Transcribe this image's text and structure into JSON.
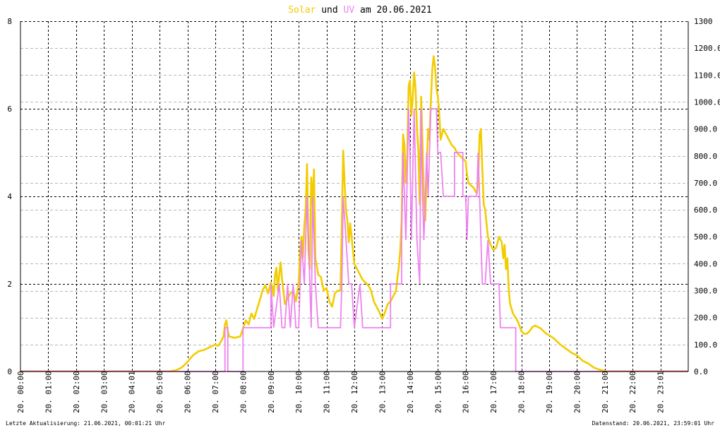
{
  "title": {
    "part1": "Solar",
    "part2": " und ",
    "part3": "UV",
    "part4": " am 20.06.2021"
  },
  "footer": {
    "left": "Letzte Aktualisierung: 21.06.2021, 00:01:21 Uhr",
    "right": "Datenstand: 20.06.2021, 23:59:01 Uhr"
  },
  "chart_data": {
    "type": "line",
    "title": "Solar und UV am 20.06.2021",
    "x_axis": {
      "unit": "hour",
      "range": [
        0,
        24
      ],
      "tick_labels": [
        "20. 00:00",
        "20. 01:00",
        "20. 02:00",
        "20. 03:00",
        "20. 04:01",
        "20. 05:00",
        "20. 06:00",
        "20. 07:00",
        "20. 08:00",
        "20. 09:00",
        "20. 10:00",
        "20. 11:00",
        "20. 12:00",
        "20. 13:00",
        "20. 14:00",
        "20. 15:00",
        "20. 16:00",
        "20. 17:00",
        "20. 18:00",
        "20. 19:00",
        "20. 20:00",
        "20. 21:00",
        "20. 22:00",
        "20. 23:01"
      ]
    },
    "y_left": {
      "range": [
        0,
        8
      ],
      "ticks": [
        "0",
        "2",
        "4",
        "6",
        "8"
      ],
      "series": "UV"
    },
    "y_right": {
      "range": [
        0,
        1300
      ],
      "ticks": [
        "0.0",
        "100.0",
        "200.0",
        "300.0",
        "400.0",
        "500.0",
        "600.0",
        "700.0",
        "800.0",
        "900.0",
        "1000.0",
        "1100.0",
        "1200.0",
        "1300"
      ],
      "series": "Solar"
    },
    "grid": true,
    "colors": {
      "solar": "#f2cc00",
      "uv": "#ee82ee",
      "overlap": "#f4a0a0",
      "grid": "#000000"
    },
    "series": [
      {
        "name": "Solar",
        "axis": "right",
        "points": [
          [
            0,
            0
          ],
          [
            5.3,
            0
          ],
          [
            5.6,
            5
          ],
          [
            5.8,
            15
          ],
          [
            6.0,
            35
          ],
          [
            6.2,
            60
          ],
          [
            6.4,
            75
          ],
          [
            6.6,
            80
          ],
          [
            6.8,
            90
          ],
          [
            7.0,
            100
          ],
          [
            7.1,
            95
          ],
          [
            7.2,
            110
          ],
          [
            7.3,
            130
          ],
          [
            7.35,
            175
          ],
          [
            7.4,
            190
          ],
          [
            7.45,
            150
          ],
          [
            7.5,
            130
          ],
          [
            7.7,
            125
          ],
          [
            7.9,
            130
          ],
          [
            8.0,
            160
          ],
          [
            8.1,
            190
          ],
          [
            8.2,
            175
          ],
          [
            8.3,
            215
          ],
          [
            8.4,
            195
          ],
          [
            8.5,
            230
          ],
          [
            8.6,
            265
          ],
          [
            8.7,
            300
          ],
          [
            8.8,
            320
          ],
          [
            8.9,
            290
          ],
          [
            9.0,
            330
          ],
          [
            9.05,
            315
          ],
          [
            9.1,
            280
          ],
          [
            9.15,
            360
          ],
          [
            9.2,
            385
          ],
          [
            9.25,
            300
          ],
          [
            9.3,
            360
          ],
          [
            9.35,
            405
          ],
          [
            9.4,
            345
          ],
          [
            9.5,
            250
          ],
          [
            9.6,
            270
          ],
          [
            9.7,
            290
          ],
          [
            9.8,
            300
          ],
          [
            9.9,
            260
          ],
          [
            10.0,
            330
          ],
          [
            10.05,
            450
          ],
          [
            10.1,
            500
          ],
          [
            10.15,
            420
          ],
          [
            10.2,
            540
          ],
          [
            10.25,
            600
          ],
          [
            10.3,
            770
          ],
          [
            10.35,
            450
          ],
          [
            10.4,
            380
          ],
          [
            10.45,
            720
          ],
          [
            10.5,
            620
          ],
          [
            10.55,
            750
          ],
          [
            10.6,
            420
          ],
          [
            10.7,
            360
          ],
          [
            10.8,
            350
          ],
          [
            10.9,
            300
          ],
          [
            11.0,
            310
          ],
          [
            11.1,
            260
          ],
          [
            11.2,
            240
          ],
          [
            11.3,
            290
          ],
          [
            11.4,
            300
          ],
          [
            11.5,
            300
          ],
          [
            11.55,
            560
          ],
          [
            11.6,
            820
          ],
          [
            11.65,
            700
          ],
          [
            11.7,
            600
          ],
          [
            11.75,
            560
          ],
          [
            11.8,
            480
          ],
          [
            11.85,
            550
          ],
          [
            11.9,
            500
          ],
          [
            12.0,
            400
          ],
          [
            12.1,
            380
          ],
          [
            12.2,
            360
          ],
          [
            12.3,
            340
          ],
          [
            12.4,
            330
          ],
          [
            12.5,
            320
          ],
          [
            12.6,
            300
          ],
          [
            12.7,
            260
          ],
          [
            12.8,
            240
          ],
          [
            12.9,
            220
          ],
          [
            13.0,
            195
          ],
          [
            13.1,
            220
          ],
          [
            13.2,
            250
          ],
          [
            13.3,
            260
          ],
          [
            13.4,
            280
          ],
          [
            13.5,
            300
          ],
          [
            13.55,
            350
          ],
          [
            13.6,
            390
          ],
          [
            13.65,
            450
          ],
          [
            13.7,
            560
          ],
          [
            13.75,
            880
          ],
          [
            13.8,
            840
          ],
          [
            13.85,
            700
          ],
          [
            13.9,
            800
          ],
          [
            13.95,
            1060
          ],
          [
            14.0,
            1080
          ],
          [
            14.05,
            950
          ],
          [
            14.1,
            1020
          ],
          [
            14.15,
            1110
          ],
          [
            14.2,
            1050
          ],
          [
            14.25,
            900
          ],
          [
            14.3,
            820
          ],
          [
            14.35,
            620
          ],
          [
            14.4,
            1020
          ],
          [
            14.45,
            840
          ],
          [
            14.5,
            650
          ],
          [
            14.55,
            560
          ],
          [
            14.6,
            760
          ],
          [
            14.65,
            900
          ],
          [
            14.7,
            860
          ],
          [
            14.75,
            1000
          ],
          [
            14.8,
            1120
          ],
          [
            14.85,
            1170
          ],
          [
            14.9,
            1130
          ],
          [
            14.95,
            1050
          ],
          [
            15.0,
            1020
          ],
          [
            15.05,
            960
          ],
          [
            15.1,
            860
          ],
          [
            15.2,
            900
          ],
          [
            15.3,
            880
          ],
          [
            15.4,
            860
          ],
          [
            15.5,
            840
          ],
          [
            15.6,
            830
          ],
          [
            15.7,
            810
          ],
          [
            15.8,
            800
          ],
          [
            15.9,
            790
          ],
          [
            16.0,
            780
          ],
          [
            16.05,
            730
          ],
          [
            16.1,
            700
          ],
          [
            16.2,
            690
          ],
          [
            16.3,
            680
          ],
          [
            16.4,
            660
          ],
          [
            16.45,
            700
          ],
          [
            16.5,
            880
          ],
          [
            16.55,
            900
          ],
          [
            16.6,
            750
          ],
          [
            16.65,
            620
          ],
          [
            16.7,
            600
          ],
          [
            16.8,
            500
          ],
          [
            16.9,
            470
          ],
          [
            17.0,
            450
          ],
          [
            17.1,
            460
          ],
          [
            17.2,
            500
          ],
          [
            17.3,
            480
          ],
          [
            17.35,
            420
          ],
          [
            17.4,
            470
          ],
          [
            17.45,
            380
          ],
          [
            17.5,
            420
          ],
          [
            17.55,
            300
          ],
          [
            17.6,
            250
          ],
          [
            17.7,
            215
          ],
          [
            17.8,
            200
          ],
          [
            17.9,
            180
          ],
          [
            18.0,
            150
          ],
          [
            18.1,
            140
          ],
          [
            18.2,
            140
          ],
          [
            18.3,
            150
          ],
          [
            18.4,
            165
          ],
          [
            18.5,
            170
          ],
          [
            18.6,
            165
          ],
          [
            18.7,
            160
          ],
          [
            18.8,
            150
          ],
          [
            18.9,
            140
          ],
          [
            19.0,
            135
          ],
          [
            19.2,
            120
          ],
          [
            19.4,
            100
          ],
          [
            19.6,
            85
          ],
          [
            19.8,
            70
          ],
          [
            20.0,
            60
          ],
          [
            20.2,
            40
          ],
          [
            20.4,
            30
          ],
          [
            20.6,
            15
          ],
          [
            20.8,
            7
          ],
          [
            21.0,
            2
          ],
          [
            21.1,
            0
          ],
          [
            24,
            0
          ]
        ]
      },
      {
        "name": "UV",
        "axis": "left",
        "points": [
          [
            0,
            0
          ],
          [
            7.35,
            0
          ],
          [
            7.35,
            1
          ],
          [
            7.45,
            1
          ],
          [
            7.45,
            0
          ],
          [
            8.0,
            0
          ],
          [
            8.0,
            1
          ],
          [
            9.0,
            1
          ],
          [
            9.0,
            2
          ],
          [
            9.1,
            1
          ],
          [
            9.3,
            2
          ],
          [
            9.4,
            1
          ],
          [
            9.5,
            1
          ],
          [
            9.6,
            2
          ],
          [
            9.7,
            1
          ],
          [
            9.8,
            2
          ],
          [
            9.9,
            1
          ],
          [
            10.0,
            1
          ],
          [
            10.1,
            3
          ],
          [
            10.2,
            2
          ],
          [
            10.3,
            4
          ],
          [
            10.4,
            2
          ],
          [
            10.45,
            1
          ],
          [
            10.5,
            4
          ],
          [
            10.6,
            2
          ],
          [
            10.7,
            1
          ],
          [
            11.5,
            1
          ],
          [
            11.55,
            2
          ],
          [
            11.6,
            4
          ],
          [
            11.7,
            3
          ],
          [
            11.8,
            2
          ],
          [
            11.9,
            2
          ],
          [
            12.0,
            1
          ],
          [
            12.2,
            2
          ],
          [
            12.3,
            1
          ],
          [
            13.3,
            1
          ],
          [
            13.3,
            2
          ],
          [
            13.7,
            2
          ],
          [
            13.7,
            3
          ],
          [
            13.75,
            5
          ],
          [
            13.8,
            4
          ],
          [
            13.85,
            3
          ],
          [
            13.95,
            6
          ],
          [
            14.0,
            5
          ],
          [
            14.05,
            3
          ],
          [
            14.15,
            6
          ],
          [
            14.25,
            3
          ],
          [
            14.35,
            2
          ],
          [
            14.4,
            6
          ],
          [
            14.45,
            4
          ],
          [
            14.5,
            3
          ],
          [
            14.6,
            5
          ],
          [
            14.65,
            4
          ],
          [
            14.75,
            6
          ],
          [
            14.95,
            6
          ],
          [
            15.0,
            5
          ],
          [
            15.1,
            5
          ],
          [
            15.2,
            4
          ],
          [
            15.6,
            4
          ],
          [
            15.6,
            5
          ],
          [
            15.9,
            5
          ],
          [
            15.9,
            4
          ],
          [
            16.0,
            4
          ],
          [
            16.05,
            3
          ],
          [
            16.1,
            4
          ],
          [
            16.4,
            4
          ],
          [
            16.45,
            5
          ],
          [
            16.5,
            4
          ],
          [
            16.6,
            2
          ],
          [
            16.7,
            2
          ],
          [
            16.8,
            3
          ],
          [
            16.9,
            2
          ],
          [
            17.0,
            2
          ],
          [
            17.1,
            2
          ],
          [
            17.2,
            2
          ],
          [
            17.25,
            1
          ],
          [
            17.8,
            1
          ],
          [
            17.8,
            0
          ],
          [
            24,
            0
          ]
        ]
      }
    ]
  }
}
